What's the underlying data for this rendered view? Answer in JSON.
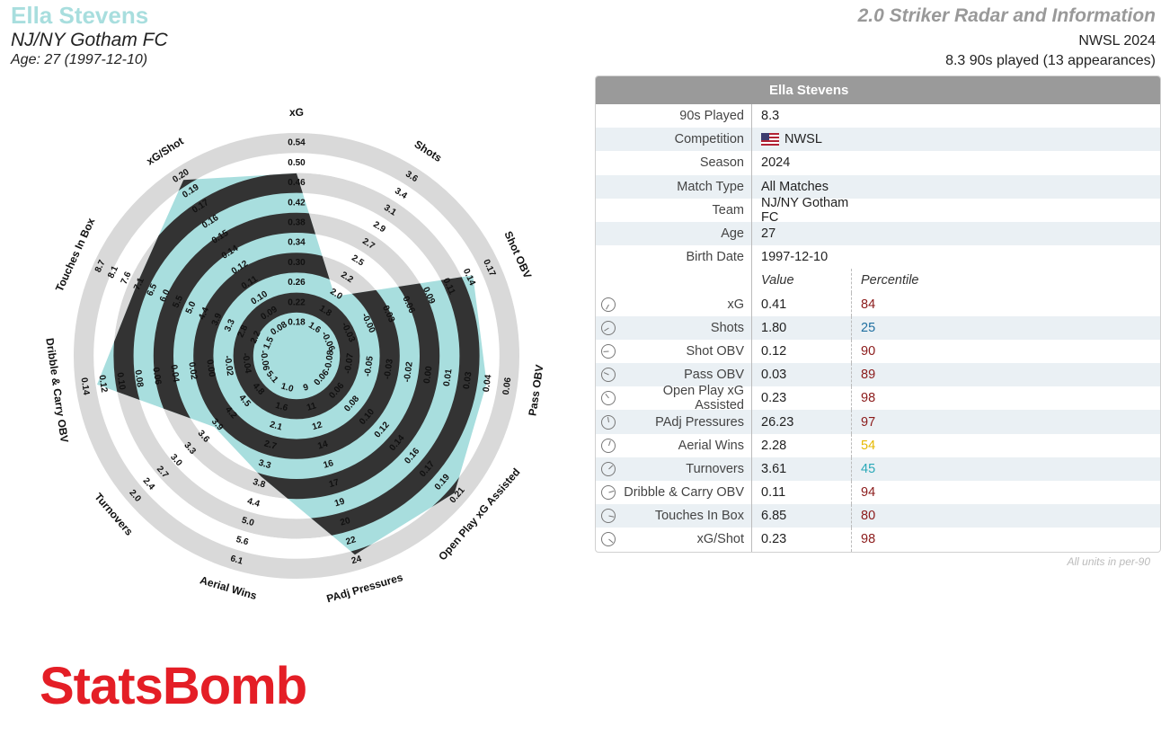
{
  "header": {
    "player_name": "Ella Stevens",
    "team": "NJ/NY Gotham FC",
    "age_line": "Age: 27 (1997-12-10)",
    "chart_title": "2.0 Striker Radar and Information",
    "competition_season": "NWSL 2024",
    "played_line": "8.3 90s played (13 appearances)"
  },
  "colors": {
    "accent": "#a8dede",
    "ring_dark": "#333333",
    "ring_light": "#d9d9d9",
    "brand": "#e41e26",
    "pct_high": "#8b1a1a",
    "pct_low": "#1f6fa0",
    "pct_mid": "#e6b800",
    "pct_cyan": "#2aa9b8"
  },
  "chart_data": {
    "type": "radar",
    "series": [
      {
        "metric": "xG",
        "value": 0.41,
        "percentile": 84,
        "ticks": [
          "0.18",
          "0.22",
          "0.26",
          "0.30",
          "0.34",
          "0.38",
          "0.42",
          "0.46",
          "0.50",
          "0.54"
        ]
      },
      {
        "metric": "Shots",
        "value": 1.8,
        "percentile": 25,
        "ticks": [
          "1.6",
          "1.8",
          "2.0",
          "2.2",
          "2.5",
          "2.7",
          "2.9",
          "3.1",
          "3.4",
          "3.6"
        ]
      },
      {
        "metric": "Shot OBV",
        "value": 0.12,
        "percentile": 90,
        "ticks": [
          "-0.06",
          "-0.03",
          "-0.00",
          "0.03",
          "0.06",
          "0.09",
          "0.11",
          "0.14",
          "0.17"
        ]
      },
      {
        "metric": "Pass OBV",
        "value": 0.03,
        "percentile": 89,
        "ticks": [
          "-0.08",
          "-0.07",
          "-0.05",
          "-0.03",
          "-0.02",
          "0.00",
          "0.01",
          "0.03",
          "0.04",
          "0.06"
        ]
      },
      {
        "metric": "Open Play xG Assisted",
        "value": 0.23,
        "percentile": 98,
        "ticks": [
          "0.06",
          "0.06",
          "0.08",
          "0.10",
          "0.12",
          "0.14",
          "0.16",
          "0.17",
          "0.19",
          "0.21"
        ]
      },
      {
        "metric": "PAdj Pressures",
        "value": 26.23,
        "percentile": 97,
        "ticks": [
          "9",
          "11",
          "12",
          "14",
          "16",
          "17",
          "19",
          "20",
          "22",
          "24"
        ]
      },
      {
        "metric": "Aerial Wins",
        "value": 2.28,
        "percentile": 54,
        "ticks": [
          "1.0",
          "1.6",
          "2.1",
          "2.7",
          "3.3",
          "3.8",
          "4.4",
          "5.0",
          "5.6",
          "6.1"
        ]
      },
      {
        "metric": "Turnovers",
        "value": 3.61,
        "percentile": 45,
        "ticks": [
          "5.1",
          "4.8",
          "4.5",
          "4.2",
          "3.9",
          "3.6",
          "3.3",
          "3.0",
          "2.7",
          "2.4",
          "2.0"
        ]
      },
      {
        "metric": "Dribble & Carry OBV",
        "value": 0.11,
        "percentile": 94,
        "ticks": [
          "-0.06",
          "-0.04",
          "-0.02",
          "0.00",
          "0.02",
          "0.04",
          "0.06",
          "0.08",
          "0.10",
          "0.12",
          "0.14"
        ]
      },
      {
        "metric": "Touches In Box",
        "value": 6.85,
        "percentile": 80,
        "ticks": [
          "1.5",
          "2.2",
          "2.8",
          "3.3",
          "3.9",
          "4.4",
          "5.0",
          "5.5",
          "6.0",
          "6.5",
          "7.1",
          "7.6",
          "8.1",
          "8.7"
        ]
      },
      {
        "metric": "xG/Shot",
        "value": 0.23,
        "percentile": 98,
        "ticks": [
          "0.08",
          "0.09",
          "0.10",
          "0.11",
          "0.12",
          "0.14",
          "0.15",
          "0.16",
          "0.17",
          "0.19",
          "0.20"
        ]
      }
    ]
  },
  "table": {
    "title": "Ella Stevens",
    "info": [
      {
        "label": "90s Played",
        "value": "8.3"
      },
      {
        "label": "Competition",
        "value": "NWSL"
      },
      {
        "label": "Season",
        "value": "2024"
      },
      {
        "label": "Match Type",
        "value": "All Matches"
      },
      {
        "label": "Team",
        "value": "NJ/NY Gotham FC"
      },
      {
        "label": "Age",
        "value": "27"
      },
      {
        "label": "Birth Date",
        "value": "1997-12-10"
      }
    ],
    "col_value": "Value",
    "col_percentile": "Percentile",
    "stats": [
      {
        "label": "xG",
        "value": "0.41",
        "percentile": "84",
        "color": "#8b1a1a"
      },
      {
        "label": "Shots",
        "value": "1.80",
        "percentile": "25",
        "color": "#1f6fa0"
      },
      {
        "label": "Shot OBV",
        "value": "0.12",
        "percentile": "90",
        "color": "#8b1a1a"
      },
      {
        "label": "Pass OBV",
        "value": "0.03",
        "percentile": "89",
        "color": "#8b1a1a"
      },
      {
        "label": "Open Play xG Assisted",
        "value": "0.23",
        "percentile": "98",
        "color": "#8b1a1a"
      },
      {
        "label": "PAdj Pressures",
        "value": "26.23",
        "percentile": "97",
        "color": "#8b1a1a"
      },
      {
        "label": "Aerial Wins",
        "value": "2.28",
        "percentile": "54",
        "color": "#e6b800"
      },
      {
        "label": "Turnovers",
        "value": "3.61",
        "percentile": "45",
        "color": "#2aa9b8"
      },
      {
        "label": "Dribble & Carry OBV",
        "value": "0.11",
        "percentile": "94",
        "color": "#8b1a1a"
      },
      {
        "label": "Touches In Box",
        "value": "6.85",
        "percentile": "80",
        "color": "#8b1a1a"
      },
      {
        "label": "xG/Shot",
        "value": "0.23",
        "percentile": "98",
        "color": "#8b1a1a"
      }
    ],
    "footnote": "All units in per-90"
  },
  "brand": "StatsBomb"
}
